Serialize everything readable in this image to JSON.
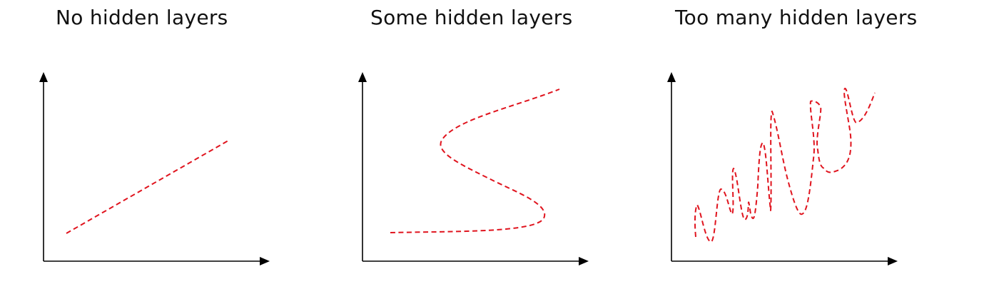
{
  "panels": [
    {
      "title": "No hidden layers"
    },
    {
      "title": "Some hidden layers"
    },
    {
      "title": "Too many hidden layers"
    }
  ],
  "colors": {
    "curve": "#e0141e",
    "axis": "#000000",
    "title": "#111111"
  }
}
